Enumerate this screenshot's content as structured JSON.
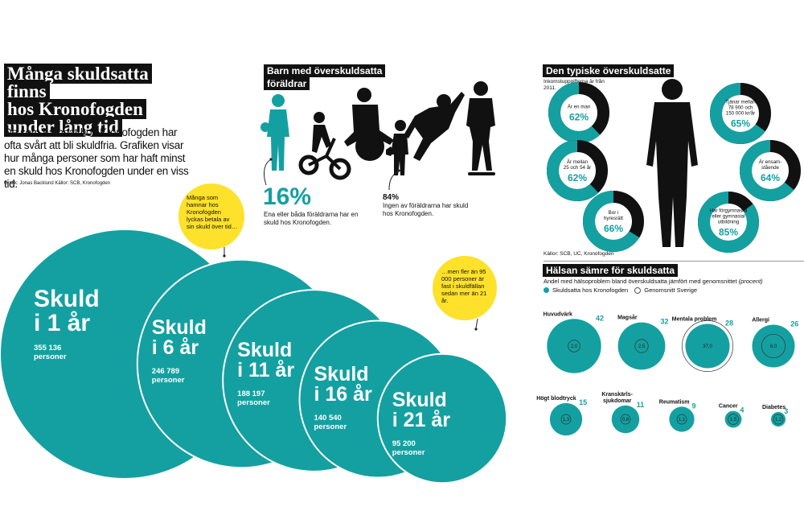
{
  "colors": {
    "teal": "#14a0a1",
    "dark_teal": "#0f8f90",
    "black": "#111111",
    "yellow": "#fde12a",
    "grey": "#a7a7a7"
  },
  "left": {
    "title_lines": [
      "Många skuldsatta finns",
      "hos Kronofogden",
      "under lång tid"
    ],
    "intro": "De som hamnat hos Kronofogden har ofta svårt att bli skuldfria. Grafiken visar hur många personer som har haft minst en skuld hos Kronofogden under en viss tid.",
    "credit": "Grafik: Jonas Backlund   Källor: SCB, Kronofogden",
    "note_top": "Många som hamnar hos Kronofogden lyckas betala av sin skuld över tid…",
    "note_bottom": "…men fler än 95 000 personer är fast i skuldfällan sedan mer än 21 år."
  },
  "middle": {
    "title_lines": [
      "Barn med överskuldsatta",
      "föräldrar"
    ],
    "stat1_value": "16%",
    "stat1_text": "Ena eller båda föräldrarna har en skuld hos Kronofogden.",
    "stat2_value": "84%",
    "stat2_text": "Ingen av föräldrarna har skuld hos Kronofogden."
  },
  "right_top": {
    "title": "Den typiske överskuldsatte",
    "subtitle": "Inkomstuppgifterna är från 2011.",
    "source": "Källor: SCB, UC, Kronofogden"
  },
  "right_bottom": {
    "title": "Hälsan sämre för skuldsatta",
    "subtitle": "Andel med hälsoproblem bland överskuldsatta jämfört med genomsnittet",
    "subtitle_unit": "(procent)",
    "legend_debt": "Skuldsatta hos Kronofogden",
    "legend_avg": "Genomsnitt Sverige"
  },
  "chart_data": [
    {
      "type": "bubble",
      "title": "Många skuldsatta finns hos Kronofogden under lång tid",
      "categories": [
        "Skuld i 1 år",
        "Skuld i 6 år",
        "Skuld i 11 år",
        "Skuld i 16 år",
        "Skuld i 21 år"
      ],
      "label_lines": [
        [
          "Skuld",
          "i 1 år"
        ],
        [
          "Skuld",
          "i 6 år"
        ],
        [
          "Skuld",
          "i 11 år"
        ],
        [
          "Skuld",
          "i 16 år"
        ],
        [
          "Skuld",
          "i 21 år"
        ]
      ],
      "values": [
        355136,
        246789,
        188197,
        140540,
        95200
      ],
      "value_labels": [
        "355 136",
        "246 789",
        "188 197",
        "140 540",
        "95 200"
      ],
      "unit": "personer"
    },
    {
      "type": "donut",
      "title": "Den typiske överskuldsatte",
      "items": [
        {
          "lines": [
            "Är en man"
          ],
          "value_label": "62%",
          "value": 62
        },
        {
          "lines": [
            "Är mellan",
            "25 och 54 år"
          ],
          "value_label": "62%",
          "value": 62
        },
        {
          "lines": [
            "Bor i",
            "hyresrätt"
          ],
          "value_label": "66%",
          "value": 66
        },
        {
          "lines": [
            "Tjänar mellan",
            "78 900 och",
            "150 000 kr/år"
          ],
          "value_label": "65%",
          "value": 65
        },
        {
          "lines": [
            "Är ensam-",
            "stående"
          ],
          "value_label": "64%",
          "value": 64
        },
        {
          "lines": [
            "Har förgymnasial",
            "eller gymnasial",
            "utbildning"
          ],
          "value_label": "85%",
          "value": 85
        }
      ]
    },
    {
      "type": "bubble-compare",
      "title": "Hälsan sämre för skuldsatta",
      "series": [
        {
          "name": "Skuldsatta hos Kronofogden",
          "values": [
            42,
            32,
            28,
            26,
            15,
            11,
            9,
            4,
            3
          ]
        },
        {
          "name": "Genomsnitt Sverige",
          "values": [
            2.0,
            2.5,
            37.0,
            8.0,
            1.3,
            0.8,
            1.1,
            1.5,
            1.2
          ]
        }
      ],
      "categories": [
        "Huvudvärk",
        "Magsår",
        "Mentala problem",
        "Allergi",
        "Högt blodtryck",
        "Kranskärlssjukdomar",
        "Reumatism",
        "Cancer",
        "Diabetes"
      ],
      "category_lines": [
        [
          "Huvudvärk"
        ],
        [
          "Magsår"
        ],
        [
          "Mentala problem"
        ],
        [
          "Allergi"
        ],
        [
          "Högt blodtryck"
        ],
        [
          "Kranskärls-",
          "sjukdomar"
        ],
        [
          "Reumatism"
        ],
        [
          "Cancer"
        ],
        [
          "Diabetes"
        ]
      ],
      "avg_labels": [
        "2,0",
        "2,5",
        "37,0",
        "8,0",
        "1,3",
        "0,8",
        "1,1",
        "1,5",
        "1,2"
      ]
    }
  ]
}
